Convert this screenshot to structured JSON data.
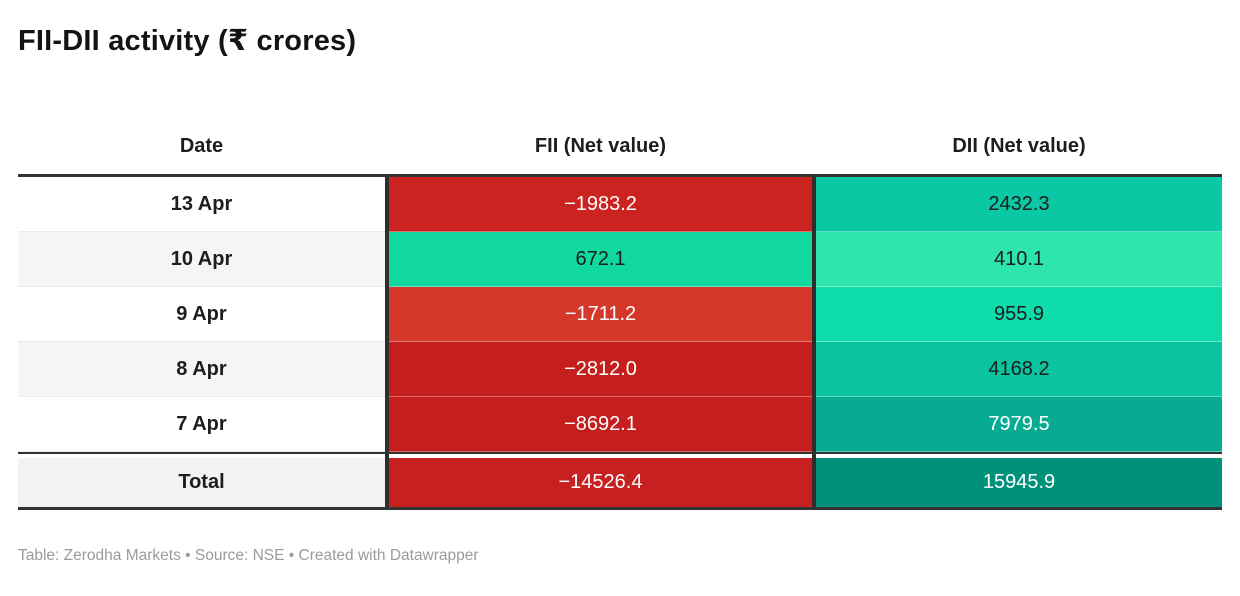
{
  "title": "FII-DII activity (₹ crores)",
  "table": {
    "headers": {
      "date": "Date",
      "fii": "FII (Net value)",
      "dii": "DII (Net value)"
    },
    "rows": [
      {
        "date": "13 Apr",
        "fii": {
          "value": "−1983.2",
          "bg": "#cb2420",
          "fg": "#ffffff"
        },
        "dii": {
          "value": "2432.3",
          "bg": "#0ac8a4",
          "fg": "#1d1d1d"
        }
      },
      {
        "date": "10 Apr",
        "fii": {
          "value": "672.1",
          "bg": "#10d89e",
          "fg": "#1d1d1d"
        },
        "dii": {
          "value": "410.1",
          "bg": "#2de5ad",
          "fg": "#1d1d1d"
        }
      },
      {
        "date": "9 Apr",
        "fii": {
          "value": "−1711.2",
          "bg": "#d5382a",
          "fg": "#ffffff"
        },
        "dii": {
          "value": "955.9",
          "bg": "#0edcab",
          "fg": "#1d1d1d"
        }
      },
      {
        "date": "8 Apr",
        "fii": {
          "value": "−2812.0",
          "bg": "#c41f1d",
          "fg": "#ffffff"
        },
        "dii": {
          "value": "4168.2",
          "bg": "#09c49e",
          "fg": "#1d1d1d"
        }
      },
      {
        "date": "7 Apr",
        "fii": {
          "value": "−8692.1",
          "bg": "#c41e1e",
          "fg": "#ffffff"
        },
        "dii": {
          "value": "7979.5",
          "bg": "#07ab92",
          "fg": "#ffffff"
        }
      }
    ],
    "total": {
      "date": "Total",
      "fii": {
        "value": "−14526.4",
        "bg": "#c62020",
        "fg": "#ffffff"
      },
      "dii": {
        "value": "15945.9",
        "bg": "#00917a",
        "fg": "#ffffff"
      }
    }
  },
  "footer": "Table: Zerodha Markets • Source: NSE • Created with Datawrapper",
  "colors": {
    "header_border": "#333333",
    "column_divider": "#2e2e2e",
    "alt_row_bg": "#f5f5f5",
    "total_date_bg": "#f2f2f2",
    "footer_text": "#9b9b9b"
  },
  "chart_data": {
    "type": "table",
    "title": "FII-DII activity (₹ crores)",
    "columns": [
      "Date",
      "FII (Net value)",
      "DII (Net value)"
    ],
    "rows": [
      [
        "13 Apr",
        -1983.2,
        2432.3
      ],
      [
        "10 Apr",
        672.1,
        410.1
      ],
      [
        "9 Apr",
        -1711.2,
        955.9
      ],
      [
        "8 Apr",
        -2812.0,
        4168.2
      ],
      [
        "7 Apr",
        -8692.1,
        7979.5
      ]
    ],
    "total_row": [
      "Total",
      -14526.4,
      15945.9
    ],
    "heatmap": true,
    "negative_color_scale": "red (darker = more negative)",
    "positive_color_scale": "green/teal (darker = larger value)",
    "source": "NSE",
    "publisher": "Zerodha Markets",
    "tool": "Datawrapper"
  }
}
